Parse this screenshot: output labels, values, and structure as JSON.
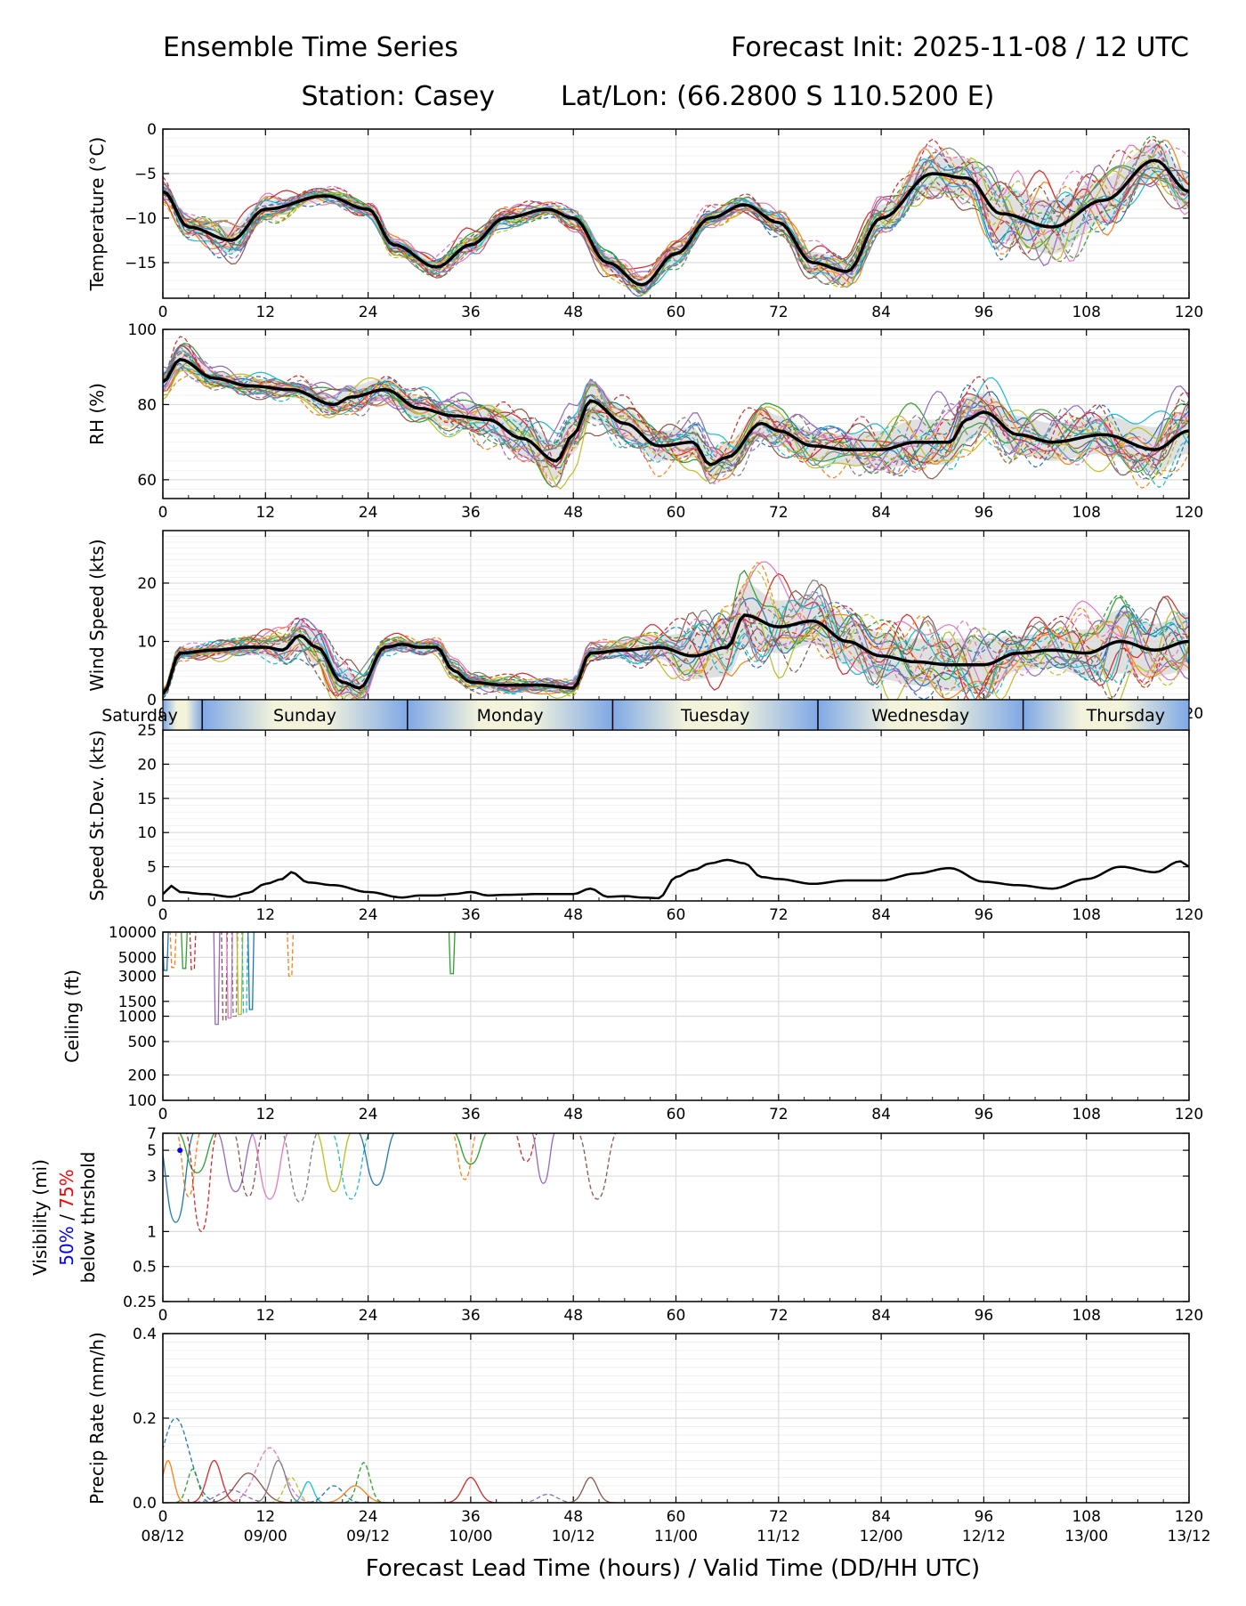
{
  "header": {
    "title_left": "Ensemble Time Series",
    "title_right": "Forecast Init: 2025-11-08 / 12 UTC",
    "station": "Station: Casey",
    "latlon": "Lat/Lon: (66.2800 S 110.5200 E)"
  },
  "colors": {
    "members": [
      "#1f77b4",
      "#ff7f0e",
      "#2ca02c",
      "#d62728",
      "#9467bd",
      "#8c564b",
      "#e377c2",
      "#7f7f7f",
      "#bcbd22",
      "#17becf"
    ],
    "mean": "#000000",
    "spread": "#d8d8d8",
    "vis50": "#0000ff",
    "vis75": "#ff0000",
    "day_band_a": "#7fa8e6",
    "day_band_b": "#f3f3dc"
  },
  "days": [
    "Saturday",
    "Sunday",
    "Monday",
    "Tuesday",
    "Wednesday",
    "Thursday"
  ],
  "x_axis": {
    "ticks": [
      0,
      12,
      24,
      36,
      48,
      60,
      72,
      84,
      96,
      108,
      120
    ],
    "valid_times": [
      "08/12",
      "09/00",
      "09/12",
      "10/00",
      "10/12",
      "11/00",
      "11/12",
      "12/00",
      "12/12",
      "13/00",
      "13/12"
    ],
    "label": "Forecast Lead Time (hours) / Valid Time (DD/HH UTC)"
  },
  "chart_data": [
    {
      "id": "temperature",
      "type": "line",
      "ylabel": "Temperature (°C)",
      "ylim": [
        -19,
        0
      ],
      "yticks": [
        0,
        -5,
        -10,
        -15
      ],
      "ytick_labels": [
        "0",
        "−5",
        "−10",
        "−15"
      ],
      "x": [
        0,
        3,
        8,
        12,
        19,
        24,
        27,
        32,
        36,
        40,
        45,
        48,
        52,
        56,
        60,
        64,
        68,
        72,
        76,
        80,
        84,
        90,
        94,
        98,
        104,
        110,
        116,
        120
      ],
      "mean": [
        -7,
        -11,
        -12.5,
        -9,
        -7.5,
        -9,
        -13,
        -15.5,
        -13,
        -10,
        -9,
        -10,
        -15,
        -17.5,
        -14,
        -10,
        -8.5,
        -10.5,
        -15,
        -16,
        -10,
        -5,
        -5.5,
        -9.5,
        -11,
        -8,
        -3.5,
        -7
      ],
      "spread": [
        1,
        1,
        1.5,
        1,
        0.6,
        0.7,
        0.8,
        0.8,
        1,
        0.8,
        0.6,
        0.9,
        1,
        1,
        1,
        0.8,
        0.7,
        1,
        1.2,
        1.4,
        1.5,
        2,
        2.2,
        3,
        3,
        2.5,
        2,
        2
      ]
    },
    {
      "id": "rh",
      "type": "line",
      "ylabel": "RH (%)",
      "ylim": [
        55,
        100
      ],
      "yticks": [
        100,
        80,
        60
      ],
      "ytick_labels": [
        "100",
        "80",
        "60"
      ],
      "x": [
        0,
        2,
        6,
        10,
        15,
        20,
        22,
        26,
        30,
        34,
        38,
        42,
        46,
        48,
        50,
        54,
        58,
        62,
        64,
        66,
        70,
        72,
        76,
        80,
        84,
        88,
        92,
        94,
        96,
        100,
        104,
        110,
        116,
        120
      ],
      "mean": [
        86,
        92,
        87,
        85,
        84,
        80,
        82,
        84,
        79,
        77,
        76,
        71,
        65,
        72,
        81,
        75,
        69,
        70,
        64,
        66,
        75,
        73,
        69,
        68,
        68,
        70,
        70,
        76,
        78,
        72,
        70,
        72,
        68,
        73
      ],
      "spread": [
        3,
        3,
        2,
        2,
        2,
        2.5,
        3,
        3,
        3,
        3,
        4,
        5,
        5,
        5,
        5,
        4,
        4,
        4,
        4,
        4,
        4,
        4,
        4,
        4,
        5,
        6,
        6,
        6,
        5,
        5,
        5,
        5,
        6,
        6
      ]
    },
    {
      "id": "wind",
      "type": "line",
      "ylabel": "Wind Speed (kts)",
      "ylim": [
        0,
        29
      ],
      "yticks": [
        0,
        10,
        20
      ],
      "ytick_labels": [
        "0",
        "10",
        "20"
      ],
      "x": [
        0,
        2,
        6,
        10,
        12,
        14,
        16,
        18,
        21,
        23,
        26,
        28,
        30,
        32,
        34,
        36,
        40,
        44,
        48,
        50,
        54,
        58,
        62,
        66,
        68,
        72,
        76,
        80,
        84,
        88,
        92,
        96,
        100,
        104,
        108,
        112,
        116,
        120
      ],
      "mean": [
        1,
        8,
        8.5,
        9,
        9,
        8.5,
        11,
        9,
        3,
        2,
        9,
        9.5,
        9,
        9,
        5,
        3,
        2.5,
        2.5,
        2,
        8,
        8.5,
        9,
        7.5,
        9,
        14.5,
        12.5,
        13.5,
        10,
        7.5,
        6.5,
        6,
        6,
        8,
        8.5,
        8,
        10,
        8.5,
        10
      ],
      "spread": [
        0.5,
        1,
        1,
        1.2,
        1.5,
        2,
        2.5,
        3,
        2.5,
        2,
        1,
        1,
        1,
        1,
        1,
        1,
        1,
        1,
        1,
        1,
        1.5,
        2,
        4,
        5,
        5.5,
        4.5,
        4,
        4,
        4,
        4,
        4.5,
        4.5,
        3,
        3,
        4,
        5.5,
        4.5,
        5
      ]
    },
    {
      "id": "stdev",
      "type": "line",
      "ylabel": "Speed St.Dev. (kts)",
      "ylim": [
        0,
        25
      ],
      "yticks": [
        0,
        5,
        10,
        15,
        20,
        25
      ],
      "ytick_labels": [
        "0",
        "5",
        "10",
        "15",
        "20",
        "25"
      ],
      "x": [
        0,
        1,
        2,
        5,
        8,
        10,
        12,
        14,
        15,
        17,
        20,
        24,
        28,
        30,
        32,
        34,
        36,
        38,
        40,
        44,
        48,
        50,
        52,
        54,
        56,
        58,
        60,
        62,
        64,
        66,
        68,
        70,
        72,
        76,
        80,
        84,
        88,
        92,
        96,
        100,
        104,
        108,
        112,
        116,
        119,
        120
      ],
      "mean": [
        1,
        2.2,
        1.3,
        1,
        0.6,
        1.2,
        2.5,
        3.2,
        4.2,
        2.7,
        2.3,
        1.3,
        0.5,
        0.8,
        0.8,
        1,
        1.3,
        0.8,
        0.9,
        1,
        1,
        1.8,
        0.6,
        0.7,
        0.5,
        0.4,
        3.5,
        4.5,
        5.5,
        6,
        5.5,
        3.5,
        3.2,
        2.5,
        3,
        3,
        4,
        4.8,
        2.8,
        2.3,
        1.8,
        3.2,
        5,
        4.2,
        5.8,
        5
      ]
    },
    {
      "id": "ceiling",
      "type": "line",
      "ylabel": "Ceiling (ft)",
      "scale": "log",
      "ylim": [
        100,
        10000
      ],
      "yticks": [
        10000,
        5000,
        3000,
        1500,
        1000,
        500,
        200,
        100
      ],
      "ytick_labels": [
        "10000",
        "5000",
        "3000",
        "1500",
        "1000",
        "500",
        "200",
        "100"
      ],
      "dips": [
        {
          "x": 0.3,
          "bottom": 3500
        },
        {
          "x": 1.2,
          "bottom": 3800
        },
        {
          "x": 2.5,
          "bottom": 3700
        },
        {
          "x": 3.5,
          "bottom": 3600
        },
        {
          "x": 6.3,
          "bottom": 800
        },
        {
          "x": 7.2,
          "bottom": 900
        },
        {
          "x": 7.8,
          "bottom": 950
        },
        {
          "x": 8.4,
          "bottom": 1000
        },
        {
          "x": 9.0,
          "bottom": 1050
        },
        {
          "x": 9.6,
          "bottom": 1100
        },
        {
          "x": 10.3,
          "bottom": 1200
        },
        {
          "x": 14.9,
          "bottom": 3000
        },
        {
          "x": 33.8,
          "bottom": 3200
        }
      ]
    },
    {
      "id": "visibility",
      "type": "line",
      "ylabel": "Visibility (mi)",
      "scale": "log",
      "ylabel_extra": [
        "50%",
        " / ",
        "75%",
        "below thrshold"
      ],
      "ylim": [
        0.25,
        7
      ],
      "yticks": [
        7,
        5,
        3,
        1,
        0.5,
        0.25
      ],
      "ytick_labels": [
        "7",
        "5",
        "3",
        "1",
        "0.5",
        "0.25"
      ],
      "dips": [
        {
          "x": 1.5,
          "bottom": 1.2
        },
        {
          "x": 3,
          "bottom": 2
        },
        {
          "x": 4,
          "bottom": 3.2
        },
        {
          "x": 4.5,
          "bottom": 1.0
        },
        {
          "x": 8.5,
          "bottom": 2.2
        },
        {
          "x": 10,
          "bottom": 2.0
        },
        {
          "x": 12.5,
          "bottom": 1.9
        },
        {
          "x": 16,
          "bottom": 1.8
        },
        {
          "x": 20,
          "bottom": 2.2
        },
        {
          "x": 22,
          "bottom": 1.9
        },
        {
          "x": 25,
          "bottom": 2.5
        },
        {
          "x": 35.3,
          "bottom": 2.8
        },
        {
          "x": 36,
          "bottom": 3.8
        },
        {
          "x": 42.5,
          "bottom": 4
        },
        {
          "x": 44.5,
          "bottom": 2.6
        },
        {
          "x": 50.8,
          "bottom": 1.9
        }
      ],
      "marker_50": {
        "x": 2,
        "y": 5
      }
    },
    {
      "id": "precip",
      "type": "line",
      "ylabel": "Precip Rate (mm/h)",
      "ylim": [
        0,
        0.4
      ],
      "yticks": [
        0.4,
        0.2,
        0.0
      ],
      "ytick_labels": [
        "0.4",
        "0.2",
        "0.0"
      ],
      "peaks": [
        {
          "x": 1.5,
          "y": 0.2
        },
        {
          "x": 0.6,
          "y": 0.1
        },
        {
          "x": 3.5,
          "y": 0.08
        },
        {
          "x": 6,
          "y": 0.1
        },
        {
          "x": 8,
          "y": 0.03
        },
        {
          "x": 10,
          "y": 0.07
        },
        {
          "x": 12.5,
          "y": 0.13
        },
        {
          "x": 13.5,
          "y": 0.1
        },
        {
          "x": 15,
          "y": 0.06
        },
        {
          "x": 17,
          "y": 0.05
        },
        {
          "x": 20,
          "y": 0.04
        },
        {
          "x": 22.5,
          "y": 0.04
        },
        {
          "x": 23.5,
          "y": 0.095
        },
        {
          "x": 36,
          "y": 0.06
        },
        {
          "x": 45,
          "y": 0.02
        },
        {
          "x": 50,
          "y": 0.06
        }
      ]
    }
  ]
}
